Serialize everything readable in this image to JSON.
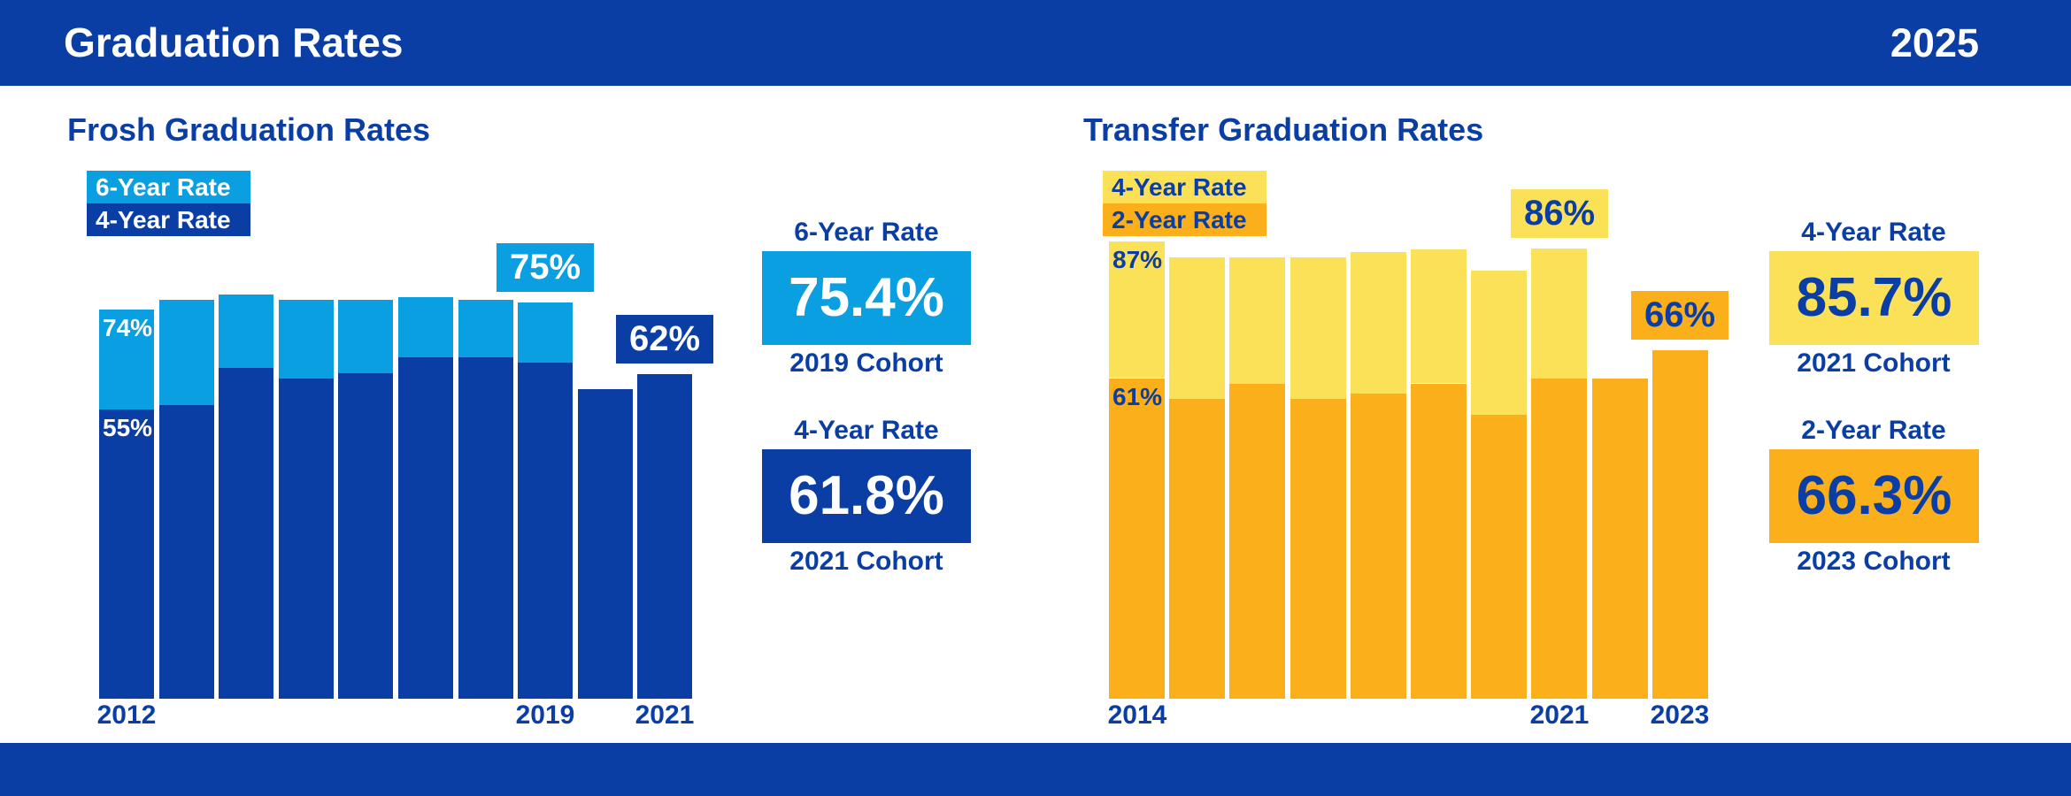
{
  "colors": {
    "dark_blue": "#0B3EA5",
    "light_blue": "#099FE0",
    "yellow": "#FBE158",
    "orange": "#FBB01B",
    "white": "#FFFFFF"
  },
  "header": {
    "title": "Graduation Rates",
    "year": "2025"
  },
  "sections": [
    {
      "title": "Frosh Graduation Rates",
      "legend": [
        {
          "label": "6-Year Rate",
          "color": "light_blue",
          "text_color": "#FFFFFF"
        },
        {
          "label": "4-Year Rate",
          "color": "dark_blue",
          "text_color": "#FFFFFF"
        }
      ],
      "panels": [
        {
          "rate_label": "6-Year Rate",
          "value": "75.4%",
          "cohort": "2019 Cohort",
          "box_color": "light_blue",
          "value_color": "#FFFFFF"
        },
        {
          "rate_label": "4-Year Rate",
          "value": "61.8%",
          "cohort": "2021 Cohort",
          "box_color": "dark_blue",
          "value_color": "#FFFFFF"
        }
      ]
    },
    {
      "title": "Transfer Graduation Rates",
      "legend": [
        {
          "label": "4-Year Rate",
          "color": "yellow",
          "text_color": "#0B3EA5"
        },
        {
          "label": "2-Year Rate",
          "color": "orange",
          "text_color": "#0B3EA5"
        }
      ],
      "panels": [
        {
          "rate_label": "4-Year Rate",
          "value": "85.7%",
          "cohort": "2021 Cohort",
          "box_color": "yellow",
          "value_color": "#0B3EA5"
        },
        {
          "rate_label": "2-Year Rate",
          "value": "66.3%",
          "cohort": "2023 Cohort",
          "box_color": "orange",
          "value_color": "#0B3EA5"
        }
      ]
    }
  ],
  "chart_data": [
    {
      "type": "bar",
      "stacked": true,
      "title": "Frosh Graduation Rates",
      "unit": "%",
      "ylim": [
        0,
        100
      ],
      "categories": [
        "2012",
        "2013",
        "2014",
        "2015",
        "2016",
        "2017",
        "2018",
        "2019",
        "2020",
        "2021"
      ],
      "series": [
        {
          "name": "4-Year Rate",
          "color": "dark_blue",
          "values": [
            55,
            56,
            63,
            61,
            62,
            65,
            65,
            64,
            59,
            61.8
          ]
        },
        {
          "name": "6-Year Rate",
          "color": "light_blue",
          "values": [
            74,
            76,
            77,
            76,
            76,
            76.5,
            76,
            75.4,
            null,
            null
          ]
        }
      ],
      "shown_x_labels": [
        {
          "index": 0,
          "text": "2012"
        },
        {
          "index": 7,
          "text": "2019"
        },
        {
          "index": 9,
          "text": "2021"
        }
      ],
      "bar_labels": [
        {
          "bar": 0,
          "series": 1,
          "text": "74%",
          "color": "#FFFFFF"
        },
        {
          "bar": 0,
          "series": 0,
          "text": "55%",
          "color": "#FFFFFF"
        }
      ],
      "callouts": [
        {
          "bar": 7,
          "text": "75%",
          "box_color": "light_blue",
          "text_color": "#FFFFFF"
        },
        {
          "bar": 9,
          "text": "62%",
          "box_color": "dark_blue",
          "text_color": "#FFFFFF"
        }
      ]
    },
    {
      "type": "bar",
      "stacked": true,
      "title": "Transfer Graduation Rates",
      "unit": "%",
      "ylim": [
        0,
        100
      ],
      "categories": [
        "2014",
        "2015",
        "2016",
        "2017",
        "2018",
        "2019",
        "2020",
        "2021",
        "2022",
        "2023"
      ],
      "series": [
        {
          "name": "2-Year Rate",
          "color": "orange",
          "values": [
            61,
            57,
            60,
            57,
            58,
            60,
            54,
            61,
            61,
            66.3
          ]
        },
        {
          "name": "4-Year Rate",
          "color": "yellow",
          "values": [
            87,
            84,
            84,
            84,
            85,
            85.5,
            81.5,
            85.7,
            null,
            null
          ]
        }
      ],
      "shown_x_labels": [
        {
          "index": 0,
          "text": "2014"
        },
        {
          "index": 7,
          "text": "2021"
        },
        {
          "index": 9,
          "text": "2023"
        }
      ],
      "bar_labels": [
        {
          "bar": 0,
          "series": 1,
          "text": "87%",
          "color": "#0B3EA5"
        },
        {
          "bar": 0,
          "series": 0,
          "text": "61%",
          "color": "#0B3EA5"
        }
      ],
      "callouts": [
        {
          "bar": 7,
          "text": "86%",
          "box_color": "yellow",
          "text_color": "#0B3EA5"
        },
        {
          "bar": 9,
          "text": "66%",
          "box_color": "orange",
          "text_color": "#0B3EA5"
        }
      ]
    }
  ]
}
